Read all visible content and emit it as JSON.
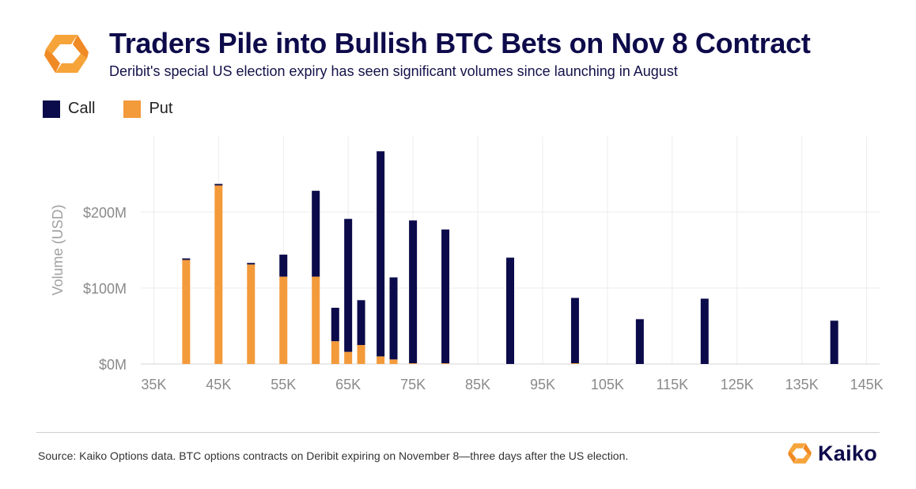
{
  "header": {
    "title": "Traders Pile into Bullish BTC Bets on Nov 8 Contract",
    "subtitle": "Deribit's special US election expiry has seen significant volumes since launching in August"
  },
  "legend": {
    "call_label": "Call",
    "put_label": "Put"
  },
  "colors": {
    "call": "#0b0a4a",
    "put": "#f39a3b",
    "title": "#0e0b4b",
    "grid": "#ececec"
  },
  "footer": {
    "source": "Source: Kaiko Options data. BTC options contracts on Deribit expiring on November 8—three days after the US election.",
    "brand": "Kaiko"
  },
  "chart_data": {
    "type": "bar",
    "stacked": true,
    "ylabel": "Volume (USD)",
    "xlabel": "",
    "xlim": [
      33000,
      147000
    ],
    "ylim": [
      0,
      300
    ],
    "y_unit": "$M",
    "yticks": [
      0,
      100,
      200
    ],
    "ytick_labels": [
      "$0M",
      "$100M",
      "$200M"
    ],
    "xticks": [
      35000,
      45000,
      55000,
      65000,
      75000,
      85000,
      95000,
      105000,
      115000,
      125000,
      135000,
      145000
    ],
    "xtick_labels": [
      "35K",
      "45K",
      "55K",
      "65K",
      "75K",
      "85K",
      "95K",
      "105K",
      "115K",
      "125K",
      "135K",
      "145K"
    ],
    "grid": true,
    "legend_position": "top-left",
    "strikes": [
      40000,
      45000,
      50000,
      55000,
      60000,
      63000,
      65000,
      67000,
      70000,
      72000,
      75000,
      80000,
      90000,
      100000,
      110000,
      120000,
      140000
    ],
    "series": [
      {
        "name": "Put",
        "values": [
          137,
          235,
          131,
          115,
          115,
          30,
          16,
          25,
          10,
          6,
          1,
          1,
          0,
          1,
          0,
          0,
          0
        ]
      },
      {
        "name": "Call",
        "values": [
          2,
          2,
          2,
          29,
          113,
          44,
          175,
          59,
          270,
          108,
          188,
          176,
          140,
          86,
          59,
          86,
          57
        ]
      }
    ]
  }
}
